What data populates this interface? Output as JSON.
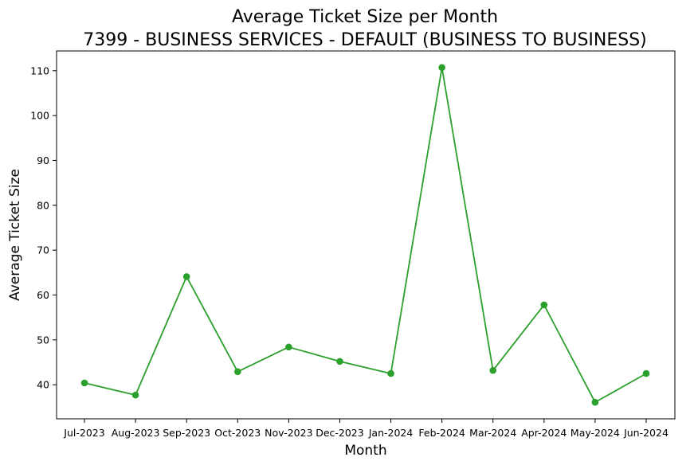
{
  "chart_data": {
    "type": "line",
    "title": "Average Ticket Size per Month",
    "subtitle": "7399 - BUSINESS SERVICES - DEFAULT (BUSINESS TO BUSINESS)",
    "xlabel": "Month",
    "ylabel": "Average Ticket Size",
    "categories": [
      "Jul-2023",
      "Aug-2023",
      "Sep-2023",
      "Oct-2023",
      "Nov-2023",
      "Dec-2023",
      "Jan-2024",
      "Feb-2024",
      "Mar-2024",
      "Apr-2024",
      "May-2024",
      "Jun-2024"
    ],
    "series": [
      {
        "values": [
          40.4,
          37.7,
          64.1,
          42.9,
          48.4,
          45.2,
          42.5,
          110.7,
          43.2,
          57.8,
          36.1,
          42.5
        ],
        "color": "#2ca02c",
        "marker": "circle"
      }
    ],
    "yticks": [
      40,
      50,
      60,
      70,
      80,
      90,
      100,
      110
    ],
    "ylim": [
      32.4,
      114.4
    ],
    "grid": false,
    "legend": "none"
  }
}
